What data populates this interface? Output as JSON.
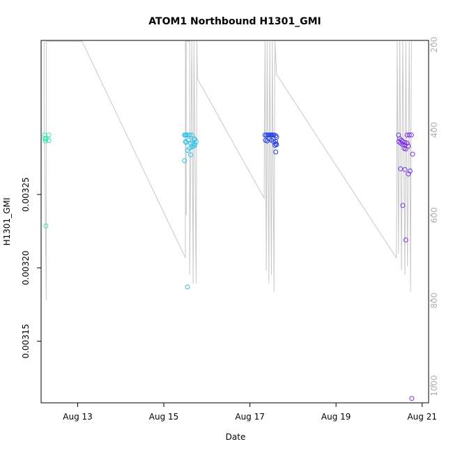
{
  "chart_data": {
    "type": "scatter",
    "title": "ATOM1 Northbound H1301_GMI",
    "xlabel": "Date",
    "ylabel": "H1301_GMI",
    "x_ticks": [
      "Aug 13",
      "Aug 15",
      "Aug 17",
      "Aug 19",
      "Aug 21"
    ],
    "x_tick_days": [
      13,
      15,
      17,
      19,
      21
    ],
    "xlim": [
      12.15,
      21.15
    ],
    "ylim": [
      0.003108,
      0.003355
    ],
    "y_ticks": [
      0.00315,
      0.0032,
      0.00325
    ],
    "y_tick_labels": [
      "0.00315",
      "0.00320",
      "0.00325"
    ],
    "right_axis": {
      "ticks": [
        200,
        400,
        600,
        800,
        1000
      ],
      "tick_labels": [
        "200",
        "400",
        "600",
        "800",
        "1000"
      ],
      "lim": [
        1040,
        190
      ],
      "color": "#b0b0b0"
    },
    "altitude_line_color": "#c8c8c8",
    "altitude_profile": [
      [
        12.22,
        192
      ],
      [
        12.22,
        330
      ],
      [
        12.27,
        800
      ],
      [
        12.27,
        192
      ],
      [
        12.3,
        192
      ],
      [
        13.1,
        192
      ],
      [
        15.5,
        700
      ],
      [
        15.5,
        192
      ],
      [
        15.52,
        600
      ],
      [
        15.52,
        192
      ],
      [
        15.6,
        192
      ],
      [
        15.6,
        740
      ],
      [
        15.65,
        192
      ],
      [
        15.68,
        760
      ],
      [
        15.7,
        192
      ],
      [
        15.75,
        760
      ],
      [
        15.77,
        192
      ],
      [
        15.78,
        280
      ],
      [
        17.33,
        560
      ],
      [
        17.35,
        192
      ],
      [
        17.38,
        730
      ],
      [
        17.4,
        192
      ],
      [
        17.44,
        760
      ],
      [
        17.46,
        192
      ],
      [
        17.5,
        740
      ],
      [
        17.52,
        192
      ],
      [
        17.56,
        780
      ],
      [
        17.58,
        192
      ],
      [
        17.62,
        270
      ],
      [
        20.4,
        700
      ],
      [
        20.42,
        192
      ],
      [
        20.45,
        690
      ],
      [
        20.48,
        192
      ],
      [
        20.52,
        730
      ],
      [
        20.55,
        192
      ],
      [
        20.6,
        740
      ],
      [
        20.62,
        192
      ],
      [
        20.66,
        720
      ],
      [
        20.7,
        192
      ],
      [
        20.73,
        780
      ],
      [
        20.75,
        192
      ]
    ],
    "series": [
      {
        "color": "#2ee8a8",
        "x": [
          12.23,
          12.24,
          12.25,
          12.27,
          12.33,
          12.33,
          12.26
        ],
        "y": [
          0.0032905,
          0.0032882,
          0.0032865,
          0.003288,
          0.0032905,
          0.0032868,
          0.0032285
        ]
      },
      {
        "color": "#2ac2e8",
        "x": [
          15.48,
          15.5,
          15.52,
          15.55,
          15.6,
          15.65,
          15.7,
          15.72,
          15.5,
          15.52,
          15.58,
          15.62,
          15.68,
          15.72,
          15.75,
          15.55,
          15.6,
          15.65,
          15.7,
          15.62,
          15.48,
          15.55
        ],
        "y": [
          0.0032905,
          0.0032905,
          0.0032905,
          0.0032905,
          0.0032905,
          0.0032905,
          0.003288,
          0.0032875,
          0.003286,
          0.0032855,
          0.003287,
          0.003285,
          0.0032845,
          0.003284,
          0.003286,
          0.00328,
          0.0032815,
          0.0032825,
          0.003283,
          0.003277,
          0.003273,
          0.003187
        ]
      },
      {
        "color": "#1f3be8",
        "x": [
          17.35,
          17.38,
          17.42,
          17.45,
          17.48,
          17.5,
          17.53,
          17.56,
          17.6,
          17.62,
          17.36,
          17.4,
          17.45,
          17.5,
          17.55,
          17.6,
          17.62,
          17.58,
          17.6,
          17.6
        ],
        "y": [
          0.0032905,
          0.0032905,
          0.0032905,
          0.0032905,
          0.0032905,
          0.0032905,
          0.0032905,
          0.0032905,
          0.00329,
          0.003289,
          0.003287,
          0.0032865,
          0.003288,
          0.003287,
          0.003286,
          0.003286,
          0.003284,
          0.0032835,
          0.0032845,
          0.003279
        ]
      },
      {
        "color": "#7a2ee8",
        "x": [
          20.45,
          20.48,
          20.52,
          20.55,
          20.6,
          20.65,
          20.7,
          20.75,
          20.46,
          20.5,
          20.55,
          20.6,
          20.65,
          20.68,
          20.58,
          20.62,
          20.78,
          20.5,
          20.6,
          20.72,
          20.68,
          20.55,
          20.62,
          20.76
        ],
        "y": [
          0.0032905,
          0.003288,
          0.003287,
          0.003286,
          0.0032855,
          0.0032905,
          0.0032905,
          0.0032905,
          0.003286,
          0.003285,
          0.003284,
          0.0032835,
          0.003285,
          0.003283,
          0.0032815,
          0.003281,
          0.0032775,
          0.0032675,
          0.003267,
          0.003266,
          0.003264,
          0.0032425,
          0.003219,
          0.003111
        ]
      }
    ],
    "grid": false,
    "legend": "none"
  }
}
